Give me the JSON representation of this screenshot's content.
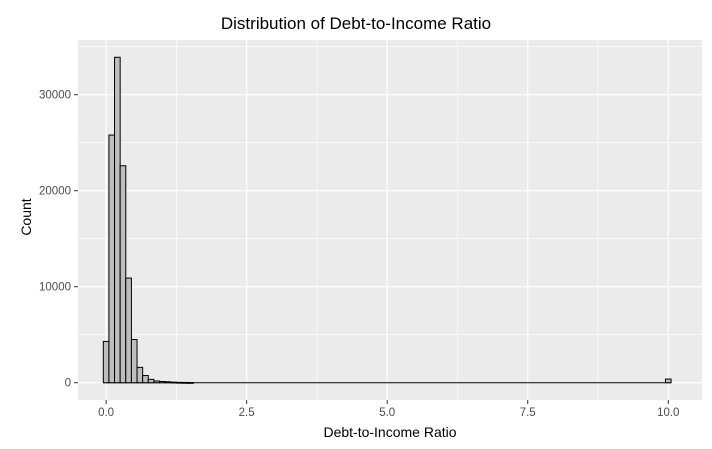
{
  "chart_data": {
    "type": "bar",
    "title": "Distribution of Debt-to-Income Ratio",
    "xlabel": "Debt-to-Income Ratio",
    "ylabel": "Count",
    "xlim": [
      -0.5,
      10.6
    ],
    "ylim": [
      -1800,
      35700
    ],
    "xticks": [
      0.0,
      2.5,
      5.0,
      7.5,
      10.0
    ],
    "xtick_labels": [
      "0.0",
      "2.5",
      "5.0",
      "7.5",
      "10.0"
    ],
    "yticks": [
      0,
      10000,
      20000,
      30000
    ],
    "ytick_labels": [
      "0",
      "10000",
      "20000",
      "30000"
    ],
    "grid": true,
    "bin_width": 0.1,
    "bins": [
      {
        "x": 0.0,
        "count": 4300
      },
      {
        "x": 0.1,
        "count": 25800
      },
      {
        "x": 0.2,
        "count": 33900
      },
      {
        "x": 0.3,
        "count": 22600
      },
      {
        "x": 0.4,
        "count": 10900
      },
      {
        "x": 0.5,
        "count": 4500
      },
      {
        "x": 0.6,
        "count": 1600
      },
      {
        "x": 0.7,
        "count": 750
      },
      {
        "x": 0.8,
        "count": 350
      },
      {
        "x": 0.9,
        "count": 180
      },
      {
        "x": 1.0,
        "count": 130
      },
      {
        "x": 1.1,
        "count": 100
      },
      {
        "x": 1.2,
        "count": 60
      },
      {
        "x": 1.3,
        "count": 40
      },
      {
        "x": 1.4,
        "count": 30
      },
      {
        "x": 1.5,
        "count": 20
      },
      {
        "x": 9.9,
        "count": 0
      },
      {
        "x": 10.0,
        "count": 380
      }
    ],
    "colors": {
      "panel": "#ebebeb",
      "grid_major": "#ffffff",
      "bar_fill": "#bebebe",
      "bar_stroke": "#000000",
      "tick_text": "#4d4d4d"
    }
  }
}
